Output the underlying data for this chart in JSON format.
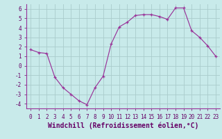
{
  "x": [
    0,
    1,
    2,
    3,
    4,
    5,
    6,
    7,
    8,
    9,
    10,
    11,
    12,
    13,
    14,
    15,
    16,
    17,
    18,
    19,
    20,
    21,
    22,
    23
  ],
  "y": [
    1.7,
    1.4,
    1.3,
    -1.2,
    -2.3,
    -3.0,
    -3.7,
    -4.1,
    -2.3,
    -1.1,
    2.3,
    4.1,
    4.6,
    5.3,
    5.4,
    5.4,
    5.2,
    4.9,
    6.1,
    6.1,
    3.7,
    3.0,
    2.1,
    1.0
  ],
  "line_color": "#993399",
  "marker": "+",
  "bg_color": "#c8eaea",
  "grid_color": "#aacccc",
  "xlabel": "Windchill (Refroidissement éolien,°C)",
  "xlim": [
    -0.5,
    23.5
  ],
  "ylim": [
    -4.5,
    6.5
  ],
  "yticks": [
    -4,
    -3,
    -2,
    -1,
    0,
    1,
    2,
    3,
    4,
    5,
    6
  ],
  "xticks": [
    0,
    1,
    2,
    3,
    4,
    5,
    6,
    7,
    8,
    9,
    10,
    11,
    12,
    13,
    14,
    15,
    16,
    17,
    18,
    19,
    20,
    21,
    22,
    23
  ],
  "tick_label_size": 5.5,
  "xlabel_size": 7.0,
  "label_color": "#660066",
  "spine_color": "#993399"
}
